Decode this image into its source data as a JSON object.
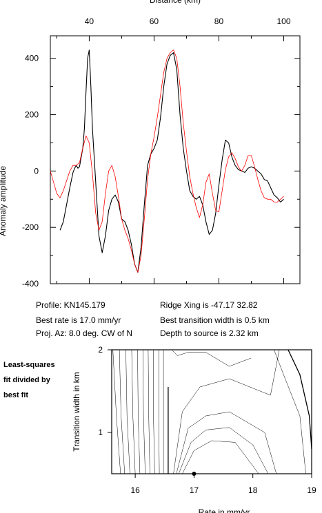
{
  "info": {
    "profile": "Profile: KN145.179",
    "best_rate": "Best rate is 17.0 mm/yr",
    "proj_az": "Proj. Az: 8.0 deg. CW of N",
    "ridge_xing": "Ridge Xing is -47.17 32.82",
    "best_width": "Best transition width is 0.5 km",
    "depth": "Depth to source is   2.32 km"
  },
  "side_label": {
    "line1": "Least-squares",
    "line2": "fit divided by",
    "line3": "best fit"
  },
  "colors": {
    "observed": "#000000",
    "model": "#ff0000",
    "contour": "#000000"
  },
  "chart_data": [
    {
      "type": "line",
      "title": "",
      "xlabel": "Distance (km)",
      "ylabel": "Anomaly amplitude",
      "xlim": [
        28,
        105
      ],
      "ylim": [
        -400,
        480
      ],
      "xticks": [
        40,
        60,
        80,
        100
      ],
      "yticks": [
        -400,
        -200,
        0,
        200,
        400
      ],
      "x_axis_position": "top",
      "series": [
        {
          "role": "observed",
          "x": [
            31,
            32,
            33,
            34,
            35,
            35.5,
            36,
            36.5,
            37,
            38,
            38.5,
            39,
            39.5,
            40,
            40.5,
            41,
            42,
            43,
            44,
            45,
            46,
            47,
            48,
            49,
            50,
            51,
            52,
            53,
            54,
            55,
            56,
            57,
            58,
            59,
            60,
            61,
            62,
            63,
            64,
            65,
            66,
            67,
            68,
            69,
            70,
            71,
            72,
            73,
            74,
            75,
            76,
            77,
            78,
            79,
            80,
            81,
            82,
            83,
            84,
            85,
            86,
            87,
            88,
            89,
            90,
            91,
            92,
            93,
            94,
            95,
            96,
            97,
            98,
            99,
            100
          ],
          "values": [
            -210,
            -180,
            -120,
            -60,
            -5,
            10,
            20,
            10,
            15,
            80,
            150,
            280,
            400,
            430,
            300,
            150,
            -40,
            -230,
            -290,
            -230,
            -140,
            -100,
            -85,
            -110,
            -170,
            -180,
            -210,
            -260,
            -330,
            -360,
            -270,
            -120,
            20,
            60,
            80,
            110,
            190,
            300,
            380,
            410,
            420,
            360,
            200,
            80,
            0,
            -70,
            -90,
            -100,
            -90,
            -120,
            -180,
            -225,
            -210,
            -150,
            -50,
            40,
            110,
            100,
            50,
            20,
            5,
            0,
            -5,
            10,
            15,
            10,
            0,
            -10,
            -30,
            -35,
            -60,
            -85,
            -95,
            -110,
            -100
          ]
        },
        {
          "role": "model",
          "x": [
            28,
            29,
            30,
            31,
            32,
            33,
            34,
            35,
            36,
            37,
            38,
            39,
            40,
            41,
            42,
            43,
            44,
            45,
            46,
            47,
            48,
            49,
            50,
            51,
            52,
            53,
            54,
            55,
            56,
            57,
            58,
            59,
            60,
            61,
            62,
            63,
            64,
            65,
            66,
            67,
            68,
            69,
            70,
            71,
            72,
            73,
            74,
            75,
            76,
            77,
            78,
            79,
            80,
            81,
            82,
            83,
            84,
            85,
            86,
            87,
            88,
            89,
            90,
            91,
            92,
            93,
            94,
            95,
            96,
            97,
            98,
            99,
            100
          ],
          "values": [
            0,
            -40,
            -80,
            -95,
            -70,
            -35,
            0,
            20,
            20,
            30,
            80,
            125,
            100,
            -10,
            -150,
            -210,
            -180,
            -80,
            0,
            20,
            -20,
            -90,
            -170,
            -210,
            -240,
            -280,
            -330,
            -360,
            -300,
            -170,
            -30,
            60,
            120,
            190,
            270,
            350,
            400,
            420,
            430,
            400,
            300,
            170,
            70,
            -20,
            -80,
            -130,
            -165,
            -120,
            -40,
            -10,
            -80,
            -140,
            -145,
            -70,
            5,
            50,
            65,
            45,
            15,
            0,
            20,
            55,
            55,
            15,
            -30,
            -70,
            -95,
            -100,
            -100,
            -110,
            -110,
            -100,
            -90
          ]
        }
      ]
    },
    {
      "type": "contour",
      "title": "",
      "xlabel": "Rate in mm/yr",
      "ylabel": "Transition width in km",
      "xlim": [
        15.6,
        19
      ],
      "ylim": [
        0.5,
        2
      ],
      "xticks": [
        16,
        17,
        18,
        19
      ],
      "yticks": [
        1,
        2
      ],
      "best_fit": {
        "x": 17.0,
        "y": 0.5
      },
      "contour_lines": [
        {
          "x": [
            15.62,
            15.68,
            15.75
          ],
          "y": [
            2,
            1.2,
            0.5
          ]
        },
        {
          "x": [
            15.73,
            15.76,
            15.82
          ],
          "y": [
            2,
            1.2,
            0.5
          ]
        },
        {
          "x": [
            15.84,
            15.86,
            15.91
          ],
          "y": [
            2,
            1.2,
            0.5
          ]
        },
        {
          "x": [
            15.94,
            15.96,
            16.0
          ],
          "y": [
            2,
            1.2,
            0.5
          ]
        },
        {
          "x": [
            16.04,
            16.05,
            16.08
          ],
          "y": [
            2,
            1.2,
            0.5
          ]
        },
        {
          "x": [
            16.13,
            16.14,
            16.17
          ],
          "y": [
            2,
            1.2,
            0.5
          ]
        },
        {
          "x": [
            16.22,
            16.23,
            16.25
          ],
          "y": [
            2,
            1.2,
            0.5
          ]
        },
        {
          "x": [
            16.31,
            16.31,
            16.33
          ],
          "y": [
            2,
            1.2,
            0.5
          ]
        },
        {
          "x": [
            16.4,
            16.4,
            16.41
          ],
          "y": [
            2,
            1.2,
            0.5
          ]
        },
        {
          "x": [
            16.48,
            16.48,
            16.48
          ],
          "y": [
            2,
            1.2,
            0.5
          ]
        },
        {
          "x": [
            16.56,
            16.56,
            16.56
          ],
          "y": [
            1.55,
            1.2,
            0.5
          ]
        },
        {
          "x": [
            16.62,
            16.72,
            16.9,
            17.2,
            17.6,
            17.97
          ],
          "y": [
            2,
            1.93,
            1.97,
            1.97,
            1.8,
            1.9
          ]
        },
        {
          "x": [
            16.65,
            16.8,
            17.1,
            17.6,
            18.3,
            18.45
          ],
          "y": [
            0.5,
            1.25,
            1.55,
            1.65,
            1.45,
            2.0
          ]
        },
        {
          "x": [
            16.7,
            16.9,
            17.2,
            17.6,
            18.2,
            18.4
          ],
          "y": [
            0.5,
            1.05,
            1.2,
            1.25,
            1.0,
            0.5
          ]
        },
        {
          "x": [
            16.74,
            16.95,
            17.2,
            17.6,
            18.0,
            18.26
          ],
          "y": [
            0.5,
            0.88,
            1.03,
            1.06,
            0.85,
            0.5
          ]
        },
        {
          "x": [
            16.8,
            17.0,
            17.3,
            17.7,
            18.1
          ],
          "y": [
            0.5,
            0.78,
            0.9,
            0.88,
            0.5
          ]
        },
        {
          "x": [
            18.36,
            18.55,
            18.8,
            18.9
          ],
          "y": [
            2.0,
            1.65,
            1.2,
            0.5
          ]
        },
        {
          "x": [
            18.6,
            18.8,
            18.96,
            19.0
          ],
          "y": [
            2.0,
            1.7,
            1.2,
            0.8
          ]
        }
      ]
    }
  ]
}
